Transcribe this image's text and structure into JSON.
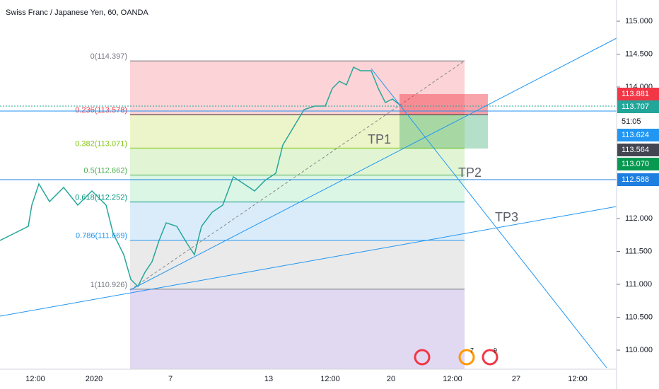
{
  "header": {
    "title": "Swiss Franc / Japanese Yen, 60, OANDA"
  },
  "price_axis": {
    "ylim": [
      109.71,
      115.3226
    ],
    "ticks": [
      {
        "value": 115,
        "label": "115.000"
      },
      {
        "value": 114.5,
        "label": "114.500"
      },
      {
        "value": 114,
        "label": "114.000"
      },
      {
        "value": 112,
        "label": "112.000"
      },
      {
        "value": 111.5,
        "label": "111.500"
      },
      {
        "value": 111,
        "label": "111.000"
      },
      {
        "value": 110.5,
        "label": "110.500"
      },
      {
        "value": 110,
        "label": "110.000"
      }
    ]
  },
  "price_badges": [
    {
      "label": "113.881",
      "color": "#f23645"
    },
    {
      "label": "113.707",
      "color": "#22a69a"
    },
    {
      "label": "51:05",
      "color": "#ffffff"
    },
    {
      "label": "113.624",
      "color": "#2196f3"
    },
    {
      "label": "113.564",
      "color": "#434651"
    },
    {
      "label": "113.070",
      "color": "#089950"
    },
    {
      "label": "112.588",
      "color": "#1e7fe0"
    }
  ],
  "fib_levels": [
    {
      "value": 114.397,
      "label": "0(114.397)",
      "color": "#787b86",
      "fill": "rgba(242,54,69,0.22)"
    },
    {
      "value": 113.578,
      "label": "0.236(113.578)",
      "color": "#f23645",
      "fill": "rgba(180,210,40,0.25)"
    },
    {
      "value": 113.071,
      "label": "0.382(113.071)",
      "color": "#81c814",
      "fill": "rgba(120,210,60,0.22)"
    },
    {
      "value": 112.662,
      "label": "0.5(112.662)",
      "color": "#4caf50",
      "fill": "rgba(80,210,130,0.2)"
    },
    {
      "value": 112.252,
      "label": "0.618(112.252)",
      "color": "#089981",
      "fill": "rgba(70,160,230,0.2)"
    },
    {
      "value": 111.669,
      "label": "0.786(111.669)",
      "color": "#2196f3",
      "fill": "rgba(150,150,150,0.2)"
    },
    {
      "value": 110.926,
      "label": "1(110.926)",
      "color": "#787b86",
      "fill": "rgba(103,58,183,0.2)"
    }
  ],
  "time_labels": [
    "12:00",
    "2020",
    "7",
    "13",
    "12:00",
    "20",
    "12:00",
    "27",
    "12:00"
  ],
  "trade_labels": [
    "TP1",
    "TP2",
    "TP3"
  ],
  "events": [
    "7",
    "9"
  ]
}
